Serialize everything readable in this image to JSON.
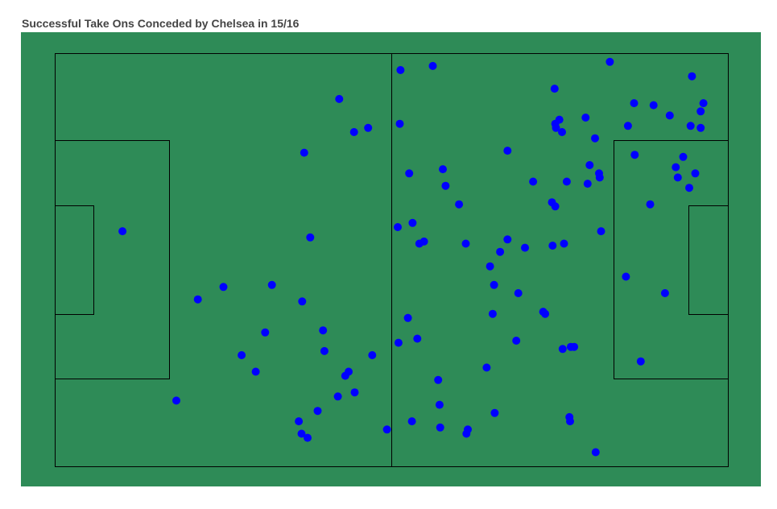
{
  "chart_data": {
    "type": "scatter",
    "title": "Successful Take Ons Conceded by Chelsea in 15/16",
    "xlabel": "",
    "ylabel": "",
    "xlim": [
      0,
      100
    ],
    "ylim": [
      0,
      100
    ],
    "grid": false,
    "legend": "none",
    "colors": {
      "pitch": "#2e8b57",
      "lines": "#000000",
      "points": "#0000ff"
    },
    "series": [
      {
        "points": [
          [
            10,
            57
          ],
          [
            18,
            16
          ],
          [
            21.2,
            40.5
          ],
          [
            25,
            43.5
          ],
          [
            27.7,
            27
          ],
          [
            29.8,
            23
          ],
          [
            31.2,
            32.5
          ],
          [
            32.2,
            44
          ],
          [
            36.2,
            11
          ],
          [
            36.6,
            8
          ],
          [
            37.5,
            7
          ],
          [
            36.7,
            40
          ],
          [
            37,
            76
          ],
          [
            37.9,
            55.5
          ],
          [
            39,
            13.5
          ],
          [
            39.8,
            33
          ],
          [
            40,
            28
          ],
          [
            42,
            17
          ],
          [
            42.2,
            89
          ],
          [
            43.1,
            22
          ],
          [
            43.6,
            23
          ],
          [
            44.4,
            81
          ],
          [
            44.5,
            18
          ],
          [
            46.5,
            82
          ],
          [
            47.1,
            27
          ],
          [
            49.3,
            9
          ],
          [
            50.9,
            58
          ],
          [
            51,
            30
          ],
          [
            51.2,
            83
          ],
          [
            51.3,
            96
          ],
          [
            52.4,
            36
          ],
          [
            52.6,
            71
          ],
          [
            53,
            11
          ],
          [
            53.1,
            59
          ],
          [
            53.8,
            31
          ],
          [
            54.1,
            54
          ],
          [
            54.8,
            54.5
          ],
          [
            56.1,
            97
          ],
          [
            56.9,
            21
          ],
          [
            57.1,
            15
          ],
          [
            57.2,
            9.5
          ],
          [
            57.6,
            72
          ],
          [
            58,
            68
          ],
          [
            60,
            63.5
          ],
          [
            61,
            54
          ],
          [
            61.1,
            8
          ],
          [
            61.3,
            9
          ],
          [
            64.1,
            24
          ],
          [
            64.6,
            48.5
          ],
          [
            65,
            37
          ],
          [
            65.2,
            44
          ],
          [
            65.3,
            13
          ],
          [
            66.1,
            52
          ],
          [
            67.2,
            76.5
          ],
          [
            67.2,
            55
          ],
          [
            68.5,
            30.5
          ],
          [
            68.8,
            42
          ],
          [
            69.8,
            53
          ],
          [
            71,
            69
          ],
          [
            72.5,
            37.5
          ],
          [
            72.8,
            37
          ],
          [
            73.8,
            64
          ],
          [
            73.9,
            53.5
          ],
          [
            74.2,
            91.5
          ],
          [
            74.3,
            83
          ],
          [
            74.3,
            63
          ],
          [
            74.4,
            82
          ],
          [
            74.9,
            84
          ],
          [
            75.4,
            28.5
          ],
          [
            75.3,
            81
          ],
          [
            75.6,
            54
          ],
          [
            76,
            69
          ],
          [
            76.4,
            12
          ],
          [
            76.6,
            29
          ],
          [
            76.5,
            11
          ],
          [
            77.1,
            29
          ],
          [
            78.8,
            84.5
          ],
          [
            79.1,
            68.5
          ],
          [
            79.4,
            73
          ],
          [
            80.2,
            79.5
          ],
          [
            80.8,
            71
          ],
          [
            80.9,
            70
          ],
          [
            80.3,
            3.5
          ],
          [
            81.1,
            57
          ],
          [
            82.4,
            98
          ],
          [
            84.8,
            46
          ],
          [
            85.1,
            82.5
          ],
          [
            86.1,
            75.5
          ],
          [
            86,
            88
          ],
          [
            87,
            25.5
          ],
          [
            88.4,
            63.5
          ],
          [
            88.9,
            87.5
          ],
          [
            90.6,
            42
          ],
          [
            91.3,
            85
          ],
          [
            92.5,
            70
          ],
          [
            92.2,
            72.5
          ],
          [
            93.3,
            75
          ],
          [
            94.2,
            67.5
          ],
          [
            94.4,
            82.5
          ],
          [
            94.6,
            94.5
          ],
          [
            95.1,
            71
          ],
          [
            95.9,
            82
          ],
          [
            95.9,
            86
          ],
          [
            96.3,
            88
          ]
        ]
      }
    ]
  }
}
